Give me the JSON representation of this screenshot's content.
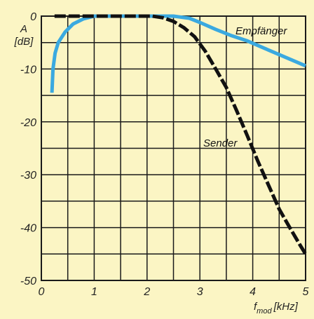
{
  "chart_data": {
    "type": "line",
    "ylabel_line1": "A",
    "ylabel_line2": "[dB]",
    "xlabel_main": "f",
    "xlabel_sub": "mod",
    "xlabel_unit": "[kHz]",
    "xlim": [
      0,
      5
    ],
    "ylim": [
      -50,
      0
    ],
    "grid": true,
    "x_ticks": [
      "0",
      "1",
      "2",
      "3",
      "4",
      "5"
    ],
    "y_ticks": [
      "0",
      "-10",
      "-20",
      "-30",
      "-40",
      "-50"
    ],
    "series": [
      {
        "name": "Empfänger",
        "color": "#3aa9e0",
        "style": "solid",
        "points": [
          [
            0.2,
            -14.5
          ],
          [
            0.22,
            -10
          ],
          [
            0.26,
            -7
          ],
          [
            0.32,
            -5
          ],
          [
            0.45,
            -3
          ],
          [
            0.6,
            -1.5
          ],
          [
            0.8,
            -0.5
          ],
          [
            1.0,
            0
          ],
          [
            1.5,
            0
          ],
          [
            2.0,
            0
          ],
          [
            2.5,
            0
          ],
          [
            2.8,
            -0.4
          ],
          [
            3.0,
            -1.2
          ],
          [
            3.3,
            -2.5
          ],
          [
            3.6,
            -3.7
          ],
          [
            3.9,
            -4.7
          ],
          [
            4.2,
            -6.0
          ],
          [
            4.6,
            -7.7
          ],
          [
            5.0,
            -9.4
          ]
        ]
      },
      {
        "name": "Sender",
        "color": "#111111",
        "style": "dashed",
        "points": [
          [
            0.25,
            0
          ],
          [
            1.0,
            0
          ],
          [
            1.5,
            0
          ],
          [
            1.9,
            0
          ],
          [
            2.1,
            0
          ],
          [
            2.3,
            -0.3
          ],
          [
            2.5,
            -1.0
          ],
          [
            2.7,
            -2.2
          ],
          [
            2.9,
            -3.9
          ],
          [
            3.1,
            -6.6
          ],
          [
            3.3,
            -10.0
          ],
          [
            3.5,
            -13.5
          ],
          [
            3.7,
            -18.0
          ],
          [
            3.9,
            -22.7
          ],
          [
            4.1,
            -27.5
          ],
          [
            4.3,
            -32.0
          ],
          [
            4.5,
            -36.5
          ],
          [
            4.7,
            -40.0
          ],
          [
            4.9,
            -43.4
          ],
          [
            5.0,
            -45.0
          ]
        ]
      }
    ]
  }
}
